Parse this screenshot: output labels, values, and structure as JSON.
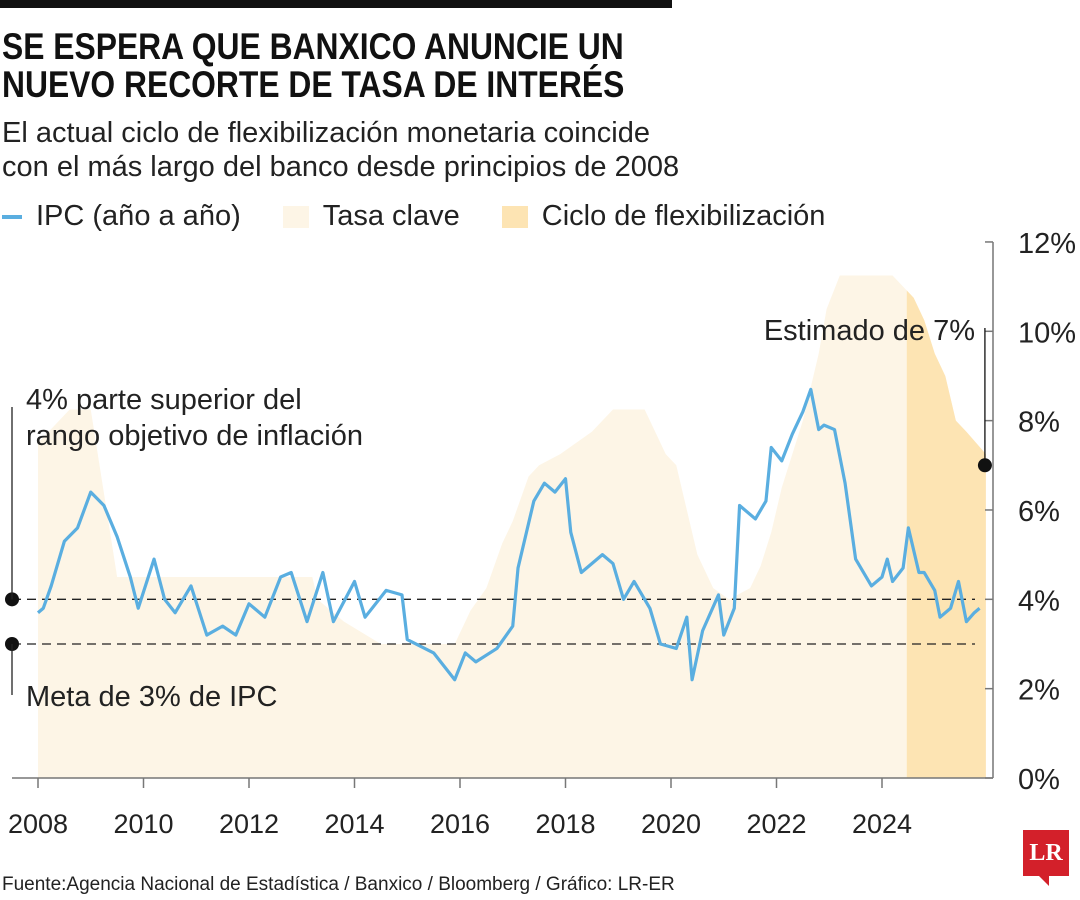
{
  "title_lines": [
    "SE ESPERA QUE BANXICO ANUNCIE UN",
    "NUEVO RECORTE DE TASA DE INTERÉS"
  ],
  "subtitle_lines": [
    "El actual ciclo de flexibilización monetaria coincide",
    "con el más largo del banco desde principios de 2008"
  ],
  "source": "Fuente:Agencia Nacional de Estadística / Banxico / Bloomberg / Gráfico: LR-ER",
  "logo": "LR",
  "colors": {
    "ipc": "#5aaee0",
    "tasa": "#fdf5e6",
    "ciclo": "#fde4b3",
    "text": "#1a1a1a",
    "logo": "#d3202a"
  },
  "chart_data": {
    "type": "line",
    "title": "SE ESPERA QUE BANXICO ANUNCIE UN NUEVO RECORTE DE TASA DE INTERÉS",
    "legend": [
      "IPC (año a año)",
      "Tasa clave",
      "Ciclo de flexibilización"
    ],
    "legend_placement": "top",
    "xlim": [
      2007.8,
      2026.6
    ],
    "ylim": [
      0,
      12
    ],
    "x_ticks": [
      2008,
      2010,
      2012,
      2014,
      2016,
      2018,
      2020,
      2022,
      2024
    ],
    "x_tick_labels": [
      "2008",
      "2010",
      "2012",
      "2014",
      "2016",
      "2018",
      "2020",
      "2022",
      "2024"
    ],
    "y_ticks": [
      0,
      2,
      4,
      6,
      8,
      10,
      12
    ],
    "y_tick_labels": [
      "0%",
      "2%",
      "4%",
      "6%",
      "8%",
      "10%",
      "12%"
    ],
    "y_axis_side": "right",
    "grid": false,
    "series": [
      {
        "name": "IPC (año a año)",
        "type": "line",
        "x": [
          2008.0,
          2008.1,
          2008.25,
          2008.5,
          2008.75,
          2009.0,
          2009.25,
          2009.5,
          2009.75,
          2009.9,
          2010.2,
          2010.4,
          2010.6,
          2010.9,
          2011.2,
          2011.5,
          2011.75,
          2012.0,
          2012.3,
          2012.6,
          2012.8,
          2013.1,
          2013.4,
          2013.6,
          2014.0,
          2014.2,
          2014.6,
          2014.9,
          2015.0,
          2015.5,
          2015.9,
          2016.1,
          2016.3,
          2016.7,
          2017.0,
          2017.1,
          2017.4,
          2017.6,
          2017.8,
          2018.0,
          2018.1,
          2018.3,
          2018.7,
          2018.9,
          2019.1,
          2019.3,
          2019.6,
          2019.8,
          2020.1,
          2020.3,
          2020.4,
          2020.6,
          2020.9,
          2021.0,
          2021.2,
          2021.3,
          2021.6,
          2021.8,
          2021.9,
          2022.1,
          2022.3,
          2022.5,
          2022.65,
          2022.8,
          2022.9,
          2023.1,
          2023.3,
          2023.5,
          2023.8,
          2024.0,
          2024.1,
          2024.2,
          2024.4,
          2024.5,
          2024.7,
          2024.8,
          2025.0,
          2025.1,
          2025.3,
          2025.45,
          2025.6,
          2025.75,
          2025.85
        ],
        "y": [
          3.7,
          3.8,
          4.3,
          5.3,
          5.6,
          6.4,
          6.1,
          5.4,
          4.5,
          3.8,
          4.9,
          4.0,
          3.7,
          4.3,
          3.2,
          3.4,
          3.2,
          3.9,
          3.6,
          4.5,
          4.6,
          3.5,
          4.6,
          3.5,
          4.4,
          3.6,
          4.2,
          4.1,
          3.1,
          2.8,
          2.2,
          2.8,
          2.6,
          2.9,
          3.4,
          4.7,
          6.2,
          6.6,
          6.4,
          6.7,
          5.5,
          4.6,
          5.0,
          4.8,
          4.0,
          4.4,
          3.8,
          3.0,
          2.9,
          3.6,
          2.2,
          3.3,
          4.1,
          3.2,
          3.8,
          6.1,
          5.8,
          6.2,
          7.4,
          7.1,
          7.7,
          8.2,
          8.7,
          7.8,
          7.9,
          7.8,
          6.6,
          4.9,
          4.3,
          4.5,
          4.9,
          4.4,
          4.7,
          5.6,
          4.6,
          4.6,
          4.2,
          3.6,
          3.8,
          4.4,
          3.5,
          3.7,
          3.8
        ]
      },
      {
        "name": "Tasa clave",
        "type": "area",
        "x": [
          2008.0,
          2008.6,
          2009.0,
          2009.1,
          2009.3,
          2009.5,
          2013.2,
          2013.3,
          2013.8,
          2014.5,
          2015.9,
          2016.0,
          2016.2,
          2016.5,
          2016.8,
          2017.0,
          2017.3,
          2017.5,
          2017.9,
          2018.5,
          2018.9,
          2019.5,
          2019.7,
          2019.9,
          2020.1,
          2020.3,
          2020.5,
          2020.8,
          2021.1,
          2021.5,
          2021.7,
          2021.9,
          2022.1,
          2022.5,
          2022.8,
          2022.95,
          2023.2,
          2024.2,
          2024.4,
          2024.6,
          2024.8,
          2025.0,
          2025.2,
          2025.4,
          2025.6,
          2025.97
        ],
        "y": [
          7.5,
          8.25,
          8.25,
          7.5,
          6.0,
          4.5,
          4.5,
          4.0,
          3.5,
          3.0,
          3.0,
          3.25,
          3.75,
          4.25,
          5.25,
          5.75,
          6.75,
          7.0,
          7.25,
          7.75,
          8.25,
          8.25,
          7.75,
          7.25,
          7.0,
          6.0,
          5.0,
          4.25,
          4.0,
          4.25,
          4.75,
          5.5,
          6.5,
          8.0,
          9.5,
          10.5,
          11.25,
          11.25,
          11.0,
          10.75,
          10.25,
          9.5,
          9.0,
          8.0,
          7.75,
          7.25
        ]
      },
      {
        "name": "Ciclo de flexibilización",
        "type": "band",
        "x_range": [
          2024.47,
          2025.97
        ]
      }
    ],
    "reference_lines": [
      {
        "y": 4,
        "label": "4% parte superior del rango objetivo de inflación",
        "label_lines": [
          "4% parte superior del",
          "rango objetivo de inflación"
        ]
      },
      {
        "y": 3,
        "label": "Meta de 3% de IPC"
      }
    ],
    "annotations": [
      {
        "x": 2025.97,
        "y": 7,
        "label": "Estimado de 7%"
      }
    ]
  }
}
